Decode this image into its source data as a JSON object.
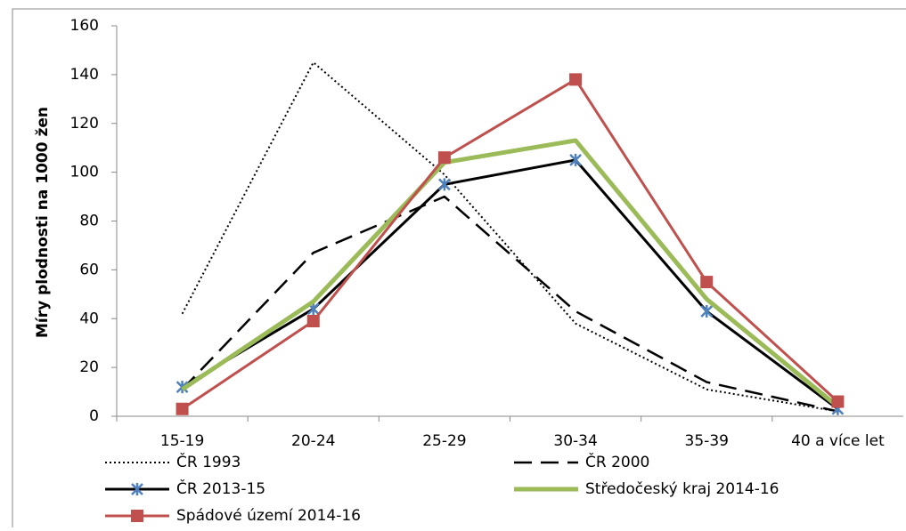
{
  "chart_data": {
    "type": "line",
    "y_label": "Míry plodnosti na 1000 žen",
    "categories": [
      "15-19",
      "20-24",
      "25-29",
      "30-34",
      "35-39",
      "40 a více let"
    ],
    "ylim": [
      0,
      160
    ],
    "yticks": [
      0,
      20,
      40,
      60,
      80,
      100,
      120,
      140,
      160
    ],
    "grid": false,
    "series": [
      {
        "name": "ČR 1993",
        "color": "#000000",
        "style": "dotted",
        "values": [
          42,
          145,
          99,
          38,
          11,
          2
        ]
      },
      {
        "name": "ČR 2000",
        "color": "#000000",
        "style": "dashed",
        "values": [
          11,
          67,
          90,
          43,
          14,
          2
        ]
      },
      {
        "name": "ČR 2013-15",
        "color": "#000000",
        "style": "solid",
        "marker": "star",
        "marker_color": "#4f81bd",
        "values": [
          12,
          44,
          95,
          105,
          43,
          3
        ]
      },
      {
        "name": "Středočeský kraj 2014-16",
        "color": "#9bbb59",
        "style": "thick",
        "values": [
          11,
          47,
          104,
          113,
          48,
          4
        ]
      },
      {
        "name": "Spádové území 2014-16",
        "color": "#c0504d",
        "style": "solid",
        "marker": "square",
        "marker_color": "#c0504d",
        "values": [
          3,
          39,
          106,
          138,
          55,
          6
        ]
      }
    ]
  }
}
